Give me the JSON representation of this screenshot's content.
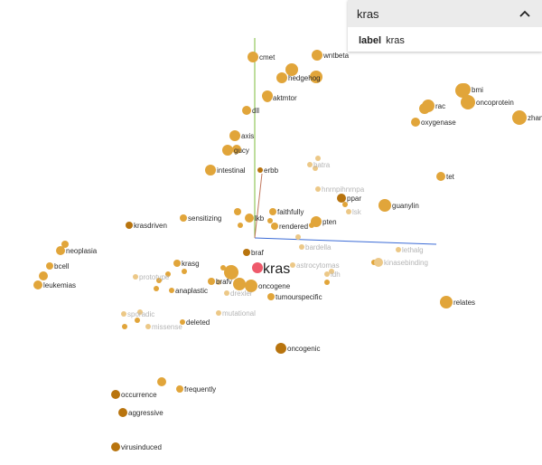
{
  "panel": {
    "title": "kras",
    "field_name": "label",
    "field_value": "kras"
  },
  "selected": "kras",
  "axes_colors": {
    "x": "#3b6bd6",
    "y": "#7cbb3b",
    "z": "#c0765c"
  },
  "colors": {
    "point": "#e1a53a",
    "point_dark": "#b8740e",
    "point_faded": "#ecc887",
    "selected": "#ee5a6b"
  },
  "labels": [
    {
      "t": "cmet",
      "s": "normal"
    },
    {
      "t": "wntbeta",
      "s": "normal"
    },
    {
      "t": "hedgehog",
      "s": "normal"
    },
    {
      "t": "aktmtor",
      "s": "normal"
    },
    {
      "t": "dll",
      "s": "normal"
    },
    {
      "t": "axis",
      "s": "normal"
    },
    {
      "t": "gucy",
      "s": "normal"
    },
    {
      "t": "intestinal",
      "s": "normal"
    },
    {
      "t": "erbb",
      "s": "normal"
    },
    {
      "t": "batra",
      "s": "faded"
    },
    {
      "t": "hnrnpihnrnpa",
      "s": "faded"
    },
    {
      "t": "ppar",
      "s": "normal"
    },
    {
      "t": "guanylin",
      "s": "normal"
    },
    {
      "t": "lsk",
      "s": "faded"
    },
    {
      "t": "pten",
      "s": "normal"
    },
    {
      "t": "faithfully",
      "s": "normal"
    },
    {
      "t": "lkb",
      "s": "normal"
    },
    {
      "t": "rendered",
      "s": "normal"
    },
    {
      "t": "bardella",
      "s": "faded"
    },
    {
      "t": "braf",
      "s": "normal"
    },
    {
      "t": "krasg",
      "s": "normal"
    },
    {
      "t": "astrocytomas",
      "s": "faded"
    },
    {
      "t": "idh",
      "s": "faded"
    },
    {
      "t": "brafv",
      "s": "normal"
    },
    {
      "t": "oncogene",
      "s": "normal"
    },
    {
      "t": "tumourspecific",
      "s": "normal"
    },
    {
      "t": "anaplastic",
      "s": "normal"
    },
    {
      "t": "drexler",
      "s": "faded"
    },
    {
      "t": "prototype",
      "s": "faded"
    },
    {
      "t": "mutational",
      "s": "faded"
    },
    {
      "t": "sporadic",
      "s": "faded"
    },
    {
      "t": "deleted",
      "s": "normal"
    },
    {
      "t": "missense",
      "s": "faded"
    },
    {
      "t": "kinasebinding",
      "s": "faded"
    },
    {
      "t": "lethalg",
      "s": "faded"
    },
    {
      "t": "relates",
      "s": "normal"
    },
    {
      "t": "oncogenic",
      "s": "normal"
    },
    {
      "t": "frequently",
      "s": "normal"
    },
    {
      "t": "occurrence",
      "s": "normal"
    },
    {
      "t": "aggressive",
      "s": "normal"
    },
    {
      "t": "virusinduced",
      "s": "normal"
    },
    {
      "t": "krasdriven",
      "s": "normal"
    },
    {
      "t": "sensitizing",
      "s": "normal"
    },
    {
      "t": "neoplasia",
      "s": "normal"
    },
    {
      "t": "bcell",
      "s": "normal"
    },
    {
      "t": "leukemias",
      "s": "normal"
    },
    {
      "t": "bmi",
      "s": "normal"
    },
    {
      "t": "rac",
      "s": "normal"
    },
    {
      "t": "oncoprotein",
      "s": "normal"
    },
    {
      "t": "zhang",
      "s": "normal"
    },
    {
      "t": "oxygenase",
      "s": "normal"
    },
    {
      "t": "tet",
      "s": "normal"
    }
  ]
}
